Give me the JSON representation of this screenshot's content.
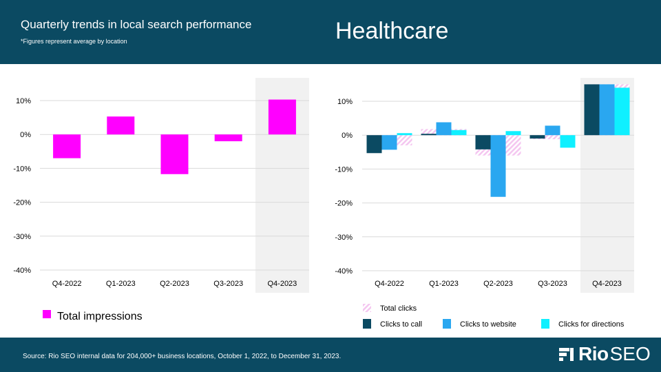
{
  "header": {
    "title": "Quarterly trends in local search performance",
    "subtitle": "*Figures represent average by location",
    "industry": "Healthcare",
    "background": "#0b4a62"
  },
  "footer": {
    "source": "Source: Rio SEO internal data for 204,000+ business locations, October 1, 2022, to December 31, 2023.",
    "logo_text_bold": "Rio",
    "logo_text": "SEO"
  },
  "chart_data": [
    {
      "type": "bar",
      "categories": [
        "Q4-2022",
        "Q1-2023",
        "Q2-2023",
        "Q3-2023",
        "Q4-2023"
      ],
      "series": [
        {
          "name": "Total impressions",
          "values": [
            -7,
            5.3,
            -11.7,
            -2,
            10.3
          ],
          "color": "#ff00ff"
        }
      ],
      "ylim": [
        -40,
        10
      ],
      "yticks": [
        10,
        0,
        -10,
        -20,
        -30,
        -40
      ],
      "ytick_labels": [
        "10%",
        "0%",
        "-10%",
        "-20%",
        "-30%",
        "-40%"
      ],
      "highlight_category": "Q4-2023",
      "legend_position": "bottom-left"
    },
    {
      "type": "bar",
      "categories": [
        "Q4-2022",
        "Q1-2023",
        "Q2-2023",
        "Q3-2023",
        "Q4-2023"
      ],
      "overlay_series": {
        "name": "Total clicks",
        "values": [
          -3,
          1.8,
          -6,
          -1.2,
          15
        ],
        "color": "#f4c6f0"
      },
      "series": [
        {
          "name": "Clicks to call",
          "values": [
            -5.3,
            0.4,
            -4.2,
            -1,
            15
          ],
          "color": "#0b4a62"
        },
        {
          "name": "Clicks to website",
          "values": [
            -4.3,
            3.8,
            -18.2,
            2.8,
            15
          ],
          "color": "#2aa7f0"
        },
        {
          "name": "Clicks for directions",
          "values": [
            0.6,
            1.5,
            1.2,
            -3.7,
            14
          ],
          "color": "#0ff0ff"
        }
      ],
      "ylim": [
        -40,
        10
      ],
      "yticks": [
        10,
        0,
        -10,
        -20,
        -30,
        -40
      ],
      "ytick_labels": [
        "10%",
        "0%",
        "-10%",
        "-20%",
        "-30%",
        "-40%"
      ],
      "highlight_category": "Q4-2023",
      "legend_position": "bottom"
    }
  ]
}
